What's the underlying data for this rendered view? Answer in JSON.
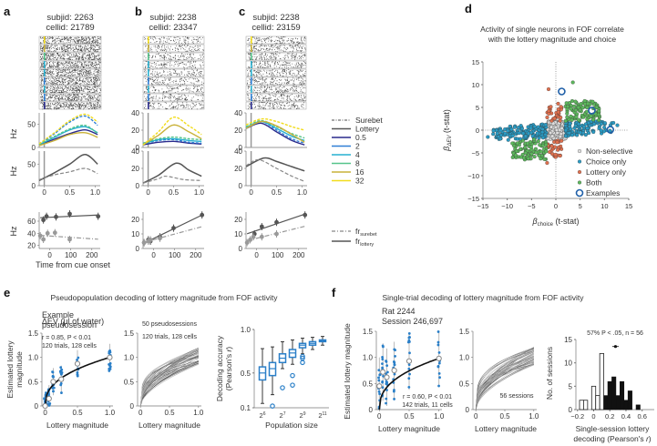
{
  "panels": {
    "a": {
      "letter": "a",
      "subjid": "subjid: 2263",
      "cellid": "cellid: 21789"
    },
    "b": {
      "letter": "b",
      "subjid": "subjid: 2238",
      "cellid": "cellid: 23347"
    },
    "c": {
      "letter": "c",
      "subjid": "subjid: 2238",
      "cellid": "cellid: 23159"
    },
    "d": {
      "letter": "d"
    },
    "e": {
      "letter": "e"
    },
    "f": {
      "letter": "f"
    }
  },
  "colors": {
    "lottery_0.5": "#2a2a8c",
    "lottery_2": "#2f7fd6",
    "lottery_4": "#27b0d0",
    "lottery_8": "#55c48a",
    "lottery_16": "#c9b23a",
    "lottery_32": "#f2dc1c",
    "lottery_line": "#555555",
    "surebet_line": "#888888",
    "nonselective": "#dddddd",
    "choice_only": "#2a9bc4",
    "lottery_only": "#e0704e",
    "both": "#5cb85c",
    "examples": "#1f5fa8",
    "decode_blue": "#2a7fc8"
  },
  "legend_abc": {
    "items": [
      "Surebet",
      "Lottery",
      "0.5",
      "2",
      "4",
      "8",
      "16",
      "32"
    ],
    "fr_surebet": "fr",
    "fr_surebet_sub": "surebet",
    "fr_lottery": "fr",
    "fr_lottery_sub": "lottery"
  },
  "chart_data": [
    {
      "id": "a-psth-by-lottery",
      "type": "line",
      "ylabel": "Hz",
      "ylim": [
        0,
        75
      ],
      "yticks": [
        "0",
        "50"
      ],
      "xlim": [
        -0.1,
        1.1
      ],
      "series": [
        {
          "name": "0.5",
          "x": [
            -0.1,
            0.2,
            0.5,
            0.8,
            1.05
          ],
          "y": [
            5,
            18,
            30,
            38,
            28
          ]
        },
        {
          "name": "2",
          "x": [
            -0.1,
            0.2,
            0.5,
            0.8,
            1.05
          ],
          "y": [
            6,
            30,
            55,
            68,
            48
          ]
        },
        {
          "name": "4",
          "x": [
            -0.1,
            0.2,
            0.5,
            0.8,
            1.05
          ],
          "y": [
            6,
            22,
            38,
            45,
            32
          ]
        },
        {
          "name": "8",
          "x": [
            -0.1,
            0.2,
            0.5,
            0.8,
            1.05
          ],
          "y": [
            7,
            24,
            40,
            48,
            30
          ]
        },
        {
          "name": "16",
          "x": [
            -0.1,
            0.2,
            0.5,
            0.8,
            1.05
          ],
          "y": [
            4,
            15,
            28,
            32,
            22
          ]
        },
        {
          "name": "32",
          "x": [
            -0.1,
            0.2,
            0.5,
            0.8,
            1.05
          ],
          "y": [
            8,
            32,
            58,
            72,
            55
          ]
        }
      ]
    },
    {
      "id": "a-psth-choice",
      "type": "line",
      "ylabel": "Hz",
      "ylim": [
        0,
        80
      ],
      "yticks": [
        "0",
        "50"
      ],
      "xticks": [
        "0",
        "0.5",
        "1.0"
      ],
      "xlabel": "Time from cue onset",
      "series": [
        {
          "name": "Lottery",
          "x": [
            -0.1,
            0.2,
            0.5,
            0.8,
            1.05
          ],
          "y": [
            12,
            30,
            50,
            72,
            50
          ]
        },
        {
          "name": "Surebet",
          "x": [
            -0.1,
            0.2,
            0.5,
            0.8,
            1.05
          ],
          "y": [
            14,
            25,
            32,
            40,
            28
          ]
        }
      ]
    },
    {
      "id": "a-tuning",
      "type": "scatter",
      "ylabel": "Hz",
      "ylim": [
        15,
        75
      ],
      "yticks": [
        "20",
        "40",
        "60"
      ],
      "xticks": [
        "0",
        "100",
        "200"
      ],
      "xlabel": "ΔEV (μl of water)",
      "series": [
        {
          "name": "fr_lottery",
          "x": [
            -30,
            -15,
            30,
            95,
            230
          ],
          "y": [
            62,
            68,
            67,
            72,
            68
          ]
        },
        {
          "name": "fr_surebet",
          "x": [
            -45,
            -30,
            -10,
            25,
            95
          ],
          "y": [
            36,
            30,
            40,
            41,
            30
          ]
        }
      ]
    },
    {
      "id": "b-psth-by-lottery",
      "type": "line",
      "ylim": [
        0,
        40
      ],
      "yticks": [
        "0",
        "20",
        "40"
      ],
      "series": [
        {
          "name": "0.5",
          "x": [
            -0.1,
            0.2,
            0.5,
            0.8,
            1.05
          ],
          "y": [
            3,
            6,
            7,
            5,
            4
          ]
        },
        {
          "name": "2",
          "x": [
            -0.1,
            0.2,
            0.5,
            0.8,
            1.05
          ],
          "y": [
            4,
            8,
            9,
            6,
            5
          ]
        },
        {
          "name": "4",
          "x": [
            -0.1,
            0.2,
            0.5,
            0.8,
            1.05
          ],
          "y": [
            4,
            9,
            10,
            8,
            7
          ]
        },
        {
          "name": "8",
          "x": [
            -0.1,
            0.2,
            0.5,
            0.8,
            1.05
          ],
          "y": [
            5,
            10,
            12,
            10,
            9
          ]
        },
        {
          "name": "16",
          "x": [
            -0.1,
            0.2,
            0.5,
            0.8,
            1.05
          ],
          "y": [
            3,
            14,
            26,
            18,
            10
          ]
        },
        {
          "name": "32",
          "x": [
            -0.1,
            0.2,
            0.5,
            0.8,
            1.05
          ],
          "y": [
            3,
            18,
            35,
            25,
            15
          ]
        }
      ]
    },
    {
      "id": "b-psth-choice",
      "type": "line",
      "ylim": [
        0,
        40
      ],
      "yticks": [
        "0",
        "20",
        "40"
      ],
      "xticks": [
        "0",
        "0.5",
        "1.0"
      ],
      "series": [
        {
          "name": "Lottery",
          "x": [
            -0.1,
            0.2,
            0.55,
            0.8,
            1.05
          ],
          "y": [
            3,
            12,
            26,
            18,
            11
          ]
        },
        {
          "name": "Surebet",
          "x": [
            -0.1,
            0.2,
            0.35,
            0.7,
            1.05
          ],
          "y": [
            3,
            8,
            11,
            7,
            6
          ]
        }
      ]
    },
    {
      "id": "b-tuning",
      "type": "scatter",
      "ylim": [
        0,
        25
      ],
      "yticks": [
        "0",
        "10",
        "20"
      ],
      "xticks": [
        "0",
        "100",
        "200"
      ],
      "series": [
        {
          "name": "fr_lottery",
          "x": [
            -45,
            -25,
            -15,
            30,
            95,
            230
          ],
          "y": [
            4,
            6,
            5,
            8,
            14,
            23
          ]
        },
        {
          "name": "fr_surebet",
          "x": [
            -45,
            -25,
            -15,
            30
          ],
          "y": [
            4,
            5,
            6,
            7
          ]
        }
      ]
    },
    {
      "id": "c-psth-by-lottery",
      "type": "line",
      "ylim": [
        0,
        40
      ],
      "yticks": [
        "0",
        "20",
        "40"
      ],
      "series": [
        {
          "name": "0.5",
          "x": [
            -0.1,
            0.2,
            0.5,
            0.8,
            1.05
          ],
          "y": [
            22,
            28,
            18,
            8,
            3
          ]
        },
        {
          "name": "2",
          "x": [
            -0.1,
            0.2,
            0.5,
            0.8,
            1.05
          ],
          "y": [
            22,
            30,
            20,
            10,
            5
          ]
        },
        {
          "name": "4",
          "x": [
            -0.1,
            0.2,
            0.5,
            0.8,
            1.05
          ],
          "y": [
            23,
            30,
            22,
            13,
            8
          ]
        },
        {
          "name": "8",
          "x": [
            -0.1,
            0.2,
            0.5,
            0.8,
            1.05
          ],
          "y": [
            24,
            31,
            24,
            16,
            11
          ]
        },
        {
          "name": "16",
          "x": [
            -0.1,
            0.2,
            0.5,
            0.8,
            1.05
          ],
          "y": [
            22,
            30,
            25,
            15,
            6
          ]
        },
        {
          "name": "32",
          "x": [
            -0.1,
            0.2,
            0.5,
            0.8,
            1.05
          ],
          "y": [
            26,
            33,
            30,
            24,
            20
          ]
        }
      ]
    },
    {
      "id": "c-psth-choice",
      "type": "line",
      "ylim": [
        0,
        40
      ],
      "yticks": [
        "0",
        "20",
        "40"
      ],
      "xticks": [
        "0",
        "0.5",
        "1.0"
      ],
      "series": [
        {
          "name": "Lottery",
          "x": [
            -0.1,
            0.25,
            0.5,
            0.8,
            1.05
          ],
          "y": [
            22,
            32,
            28,
            22,
            17
          ]
        },
        {
          "name": "Surebet",
          "x": [
            -0.1,
            0.15,
            0.5,
            0.8,
            1.05
          ],
          "y": [
            23,
            30,
            20,
            11,
            5
          ]
        }
      ]
    },
    {
      "id": "c-tuning",
      "type": "scatter",
      "ylim": [
        0,
        25
      ],
      "yticks": [
        "0",
        "10",
        "20"
      ],
      "xticks": [
        "0",
        "100",
        "200"
      ],
      "series": [
        {
          "name": "fr_lottery",
          "x": [
            -10,
            25,
            95,
            230
          ],
          "y": [
            10,
            15,
            18,
            23
          ]
        },
        {
          "name": "fr_surebet",
          "x": [
            -45,
            -30,
            -15,
            25,
            95
          ],
          "y": [
            4,
            6,
            8,
            8,
            10
          ]
        }
      ]
    },
    {
      "id": "d-scatter",
      "type": "scatter",
      "title": "Activity of single neurons in FOF correlate with the lottery magnitude and choice",
      "xlabel": "β_choice (t-stat)",
      "ylabel": "β_ΔEV (t-stat)",
      "xlim": [
        -15,
        15
      ],
      "ylim": [
        -15,
        15
      ],
      "xticks": [
        "-15",
        "-10",
        "-5",
        "0",
        "5",
        "10",
        "15"
      ],
      "yticks": [
        "-15",
        "-10",
        "-5",
        "0",
        "5",
        "10",
        "15"
      ],
      "legend": [
        "Non-selective",
        "Choice only",
        "Lottery only",
        "Both",
        "Examples"
      ],
      "legend_position": "bottom-right",
      "examples": [
        {
          "x": 1.2,
          "y": 8.5
        },
        {
          "x": 7.4,
          "y": 4.3
        },
        {
          "x": 11.2,
          "y": 0.1
        }
      ]
    },
    {
      "id": "e-example",
      "type": "scatter",
      "title": "Example pseudosession",
      "annotation": "r = 0.85, P < 0.01",
      "annotation2": "120 trials, 128 cells",
      "xlabel": "Lottery magnitude",
      "ylabel": "Estimated lottery magnitude",
      "xlim": [
        0,
        1
      ],
      "ylim": [
        0,
        1.5
      ],
      "xticks": [
        "0",
        "0.5",
        "1.0"
      ],
      "yticks": [
        "0",
        "0.5",
        "1.0",
        "1.5"
      ],
      "means": [
        {
          "x": 0,
          "y": 0.0
        },
        {
          "x": 0.06,
          "y": 0.15
        },
        {
          "x": 0.125,
          "y": 0.5
        },
        {
          "x": 0.25,
          "y": 0.55
        },
        {
          "x": 0.5,
          "y": 0.87
        },
        {
          "x": 1.0,
          "y": 1.0
        }
      ]
    },
    {
      "id": "e-pseudosessions",
      "type": "line",
      "annotation": "50 pseudosessions",
      "annotation2": "120 trials, 128 cells",
      "xlabel": "Lottery magnitude",
      "xlim": [
        0,
        1
      ],
      "ylim": [
        0,
        1.5
      ],
      "xticks": [
        "0",
        "0.5",
        "1.0"
      ],
      "yticks": [
        "0",
        "0.5",
        "1.0",
        "1.5"
      ],
      "n_lines": 50
    },
    {
      "id": "e-population",
      "type": "bar",
      "subtype": "boxplot",
      "xlabel": "Population size",
      "ylabel": "Decoding accuracy (Pearson's r)",
      "xticks": [
        "2^6",
        "2^7",
        "2^9",
        "2^11"
      ],
      "yticks": [
        "0.1",
        "0.5",
        "1.0"
      ],
      "ylim": [
        0.1,
        1.0
      ],
      "medians": [
        0.5,
        0.55,
        0.67,
        0.73,
        0.82,
        0.84,
        0.87
      ],
      "q1": [
        0.42,
        0.47,
        0.62,
        0.68,
        0.79,
        0.82,
        0.86
      ],
      "q3": [
        0.57,
        0.62,
        0.72,
        0.77,
        0.84,
        0.86,
        0.88
      ],
      "whisk_lo": [
        0.15,
        0.25,
        0.55,
        0.6,
        0.72,
        0.77,
        0.82
      ],
      "whisk_hi": [
        0.78,
        0.8,
        0.86,
        0.88,
        0.9,
        0.91,
        0.92
      ],
      "outliers": [
        [],
        [
          0.12
        ],
        [
          0.33
        ],
        [
          0.36,
          0.47
        ],
        [
          0.62,
          0.67,
          0.69
        ],
        [],
        []
      ]
    },
    {
      "id": "f-example",
      "type": "scatter",
      "title": "Rat 2244 Session 246,697",
      "annotation": "r = 0.60, P < 0.01",
      "annotation2": "142 trials, 11 cells",
      "xlabel": "Lottery magnitude",
      "ylabel": "Estimated lottery magnitude",
      "xlim": [
        0,
        1
      ],
      "ylim": [
        0,
        1.5
      ],
      "xticks": [
        "0",
        "0.5",
        "1.0"
      ],
      "yticks": [
        "0",
        "0.5",
        "1.0",
        "1.5"
      ],
      "means": [
        {
          "x": 0,
          "y": 0.45
        },
        {
          "x": 0.06,
          "y": 0.72
        },
        {
          "x": 0.125,
          "y": 0.62
        },
        {
          "x": 0.25,
          "y": 0.75
        },
        {
          "x": 0.5,
          "y": 0.93
        },
        {
          "x": 1.0,
          "y": 0.98
        }
      ]
    },
    {
      "id": "f-sessions",
      "type": "line",
      "annotation": "56 sessions",
      "xlabel": "Lottery magnitude",
      "xlim": [
        0,
        1
      ],
      "ylim": [
        0,
        1.5
      ],
      "xticks": [
        "0",
        "0.5",
        "1.0"
      ],
      "yticks": [
        "0",
        "0.5",
        "1.0",
        "1.5"
      ],
      "n_lines": 56
    },
    {
      "id": "f-histogram",
      "type": "bar",
      "title": "57% P < .05, n = 56",
      "xlabel": "Single-session lottery decoding (Pearson's r)",
      "ylabel": "No. of sessions",
      "xlim": [
        -0.2,
        0.75
      ],
      "ylim": [
        0,
        15
      ],
      "xticks": [
        "-0.2",
        "0",
        "0.2",
        "0.4",
        "0.6"
      ],
      "yticks": [
        "0",
        "5",
        "10",
        "15"
      ],
      "bin_width": 0.05,
      "bins_nonsig": [
        {
          "x": -0.15,
          "v": 2
        },
        {
          "x": -0.1,
          "v": 2
        },
        {
          "x": 0.0,
          "v": 5
        },
        {
          "x": 0.05,
          "v": 3
        },
        {
          "x": 0.1,
          "v": 12
        }
      ],
      "bins_sig": [
        {
          "x": 0.15,
          "v": 3
        },
        {
          "x": 0.2,
          "v": 6
        },
        {
          "x": 0.25,
          "v": 7
        },
        {
          "x": 0.3,
          "v": 3
        },
        {
          "x": 0.35,
          "v": 6
        },
        {
          "x": 0.4,
          "v": 2
        },
        {
          "x": 0.45,
          "v": 4
        },
        {
          "x": 0.55,
          "v": 1
        }
      ],
      "mean_marker": {
        "x": 0.27,
        "y": 12,
        "err": 0.04
      }
    }
  ],
  "titles": {
    "e": "Pseudopopulation decoding of lottery magnitude from FOF activity",
    "f": "Single-trial decoding of lottery magnitude from FOF activity",
    "d_line1": "Activity of single neurons in FOF correlate",
    "d_line2": "with the lottery magnitude and choice",
    "e_example_l1": "Example",
    "e_example_l2": "pseudosession",
    "f_example_l1": "Rat 2244",
    "f_example_l2": "Session 246,697"
  }
}
